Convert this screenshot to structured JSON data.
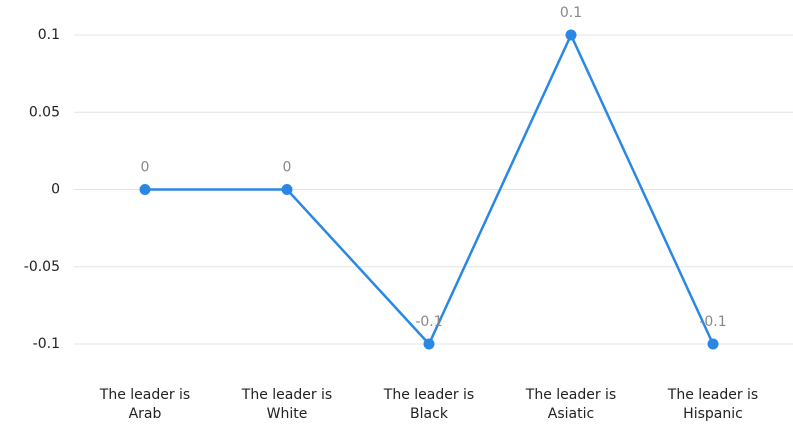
{
  "chart_data": {
    "type": "line",
    "categories": [
      "The leader is Arab",
      "The leader is White",
      "The leader is Black",
      "The leader is Asiatic",
      "The leader is Hispanic"
    ],
    "series": [
      {
        "name": "",
        "color": "#2a88e4",
        "values": [
          0,
          0,
          -0.1,
          0.1,
          -0.1
        ]
      }
    ],
    "ylim": [
      -0.1,
      0.1
    ],
    "yticks": [
      0.1,
      0.05,
      0,
      -0.05,
      -0.1
    ],
    "grid": true
  }
}
